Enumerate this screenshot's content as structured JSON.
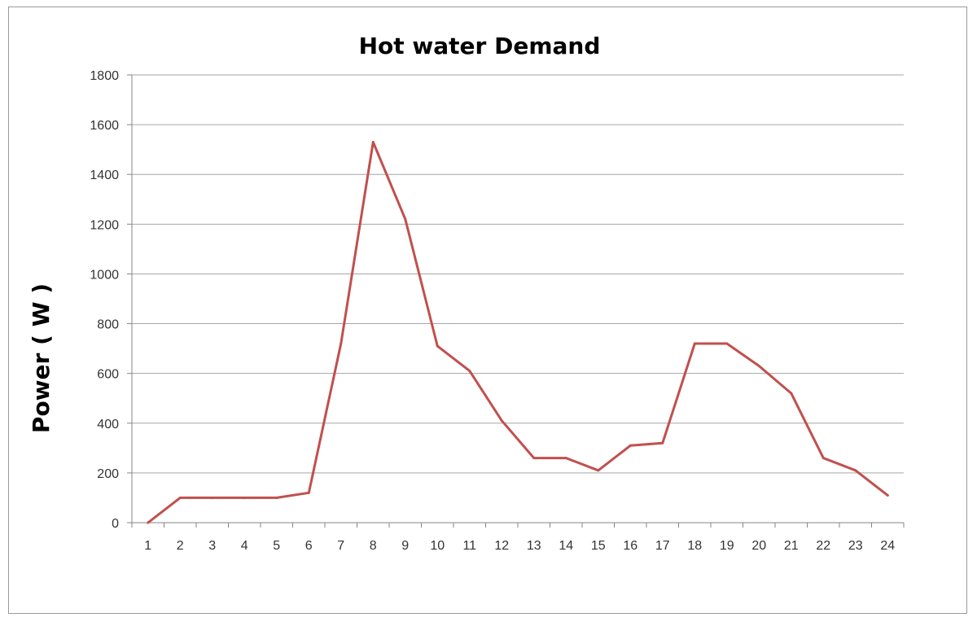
{
  "chart_data": {
    "type": "line",
    "title": "Hot water Demand",
    "xlabel": "",
    "ylabel": "Power ( W )",
    "x": [
      1,
      2,
      3,
      4,
      5,
      6,
      7,
      8,
      9,
      10,
      11,
      12,
      13,
      14,
      15,
      16,
      17,
      18,
      19,
      20,
      21,
      22,
      23,
      24
    ],
    "x_tick_labels": [
      "1",
      "2",
      "3",
      "4",
      "5",
      "6",
      "7",
      "8",
      "9",
      "10",
      "11",
      "12",
      "13",
      "14",
      "15",
      "16",
      "17",
      "18",
      "19",
      "20",
      "21",
      "22",
      "23",
      "24"
    ],
    "series": [
      {
        "values": [
          0,
          100,
          100,
          100,
          100,
          120,
          720,
          1530,
          1220,
          710,
          610,
          410,
          260,
          260,
          210,
          310,
          320,
          720,
          720,
          630,
          520,
          260,
          210,
          110
        ],
        "color": "#c0504d"
      }
    ],
    "ylim": [
      0,
      1800
    ],
    "y_ticks": [
      0,
      200,
      400,
      600,
      800,
      1000,
      1200,
      1400,
      1600,
      1800
    ],
    "y_tick_labels": [
      "0",
      "200",
      "400",
      "600",
      "800",
      "1000",
      "1200",
      "1400",
      "1600",
      "1800"
    ],
    "grid": true,
    "legend": "none"
  }
}
